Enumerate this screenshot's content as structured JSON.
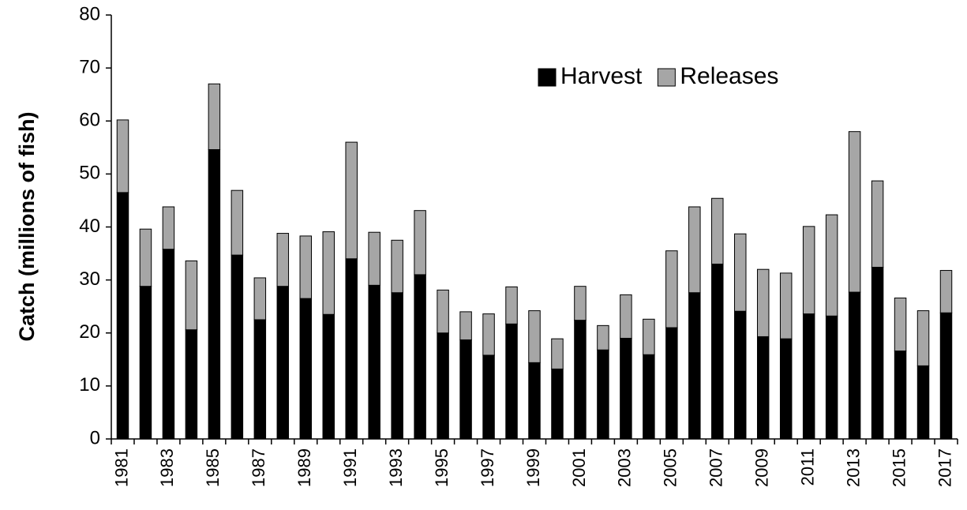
{
  "chart_data": {
    "type": "stacked-bar",
    "y_label": "Catch (millions of fish)",
    "categories": [
      "1981",
      null,
      "1983",
      null,
      "1985",
      null,
      "1987",
      null,
      "1989",
      null,
      "1991",
      null,
      "1993",
      null,
      "1995",
      null,
      "1997",
      null,
      "1999",
      null,
      "2001",
      null,
      "2003",
      null,
      "2005",
      null,
      "2007",
      null,
      "2009",
      null,
      "2011",
      null,
      "2013",
      null,
      "2015",
      null,
      "2017"
    ],
    "series": [
      {
        "name": "Harvest",
        "color": "#000000",
        "values": [
          46.5,
          28.8,
          35.8,
          20.6,
          54.6,
          34.7,
          22.5,
          28.8,
          26.5,
          23.5,
          34,
          29,
          27.6,
          31,
          20,
          18.7,
          15.8,
          21.7,
          14.4,
          13.2,
          22.4,
          16.8,
          19,
          15.9,
          21,
          27.6,
          33,
          24.1,
          19.3,
          18.9,
          23.6,
          23.2,
          27.7,
          32.4,
          16.6,
          13.8,
          23.8
        ]
      },
      {
        "name": "Releases",
        "color": "#a6a6a6",
        "values": [
          13.7,
          10.8,
          8,
          13,
          12.4,
          12.2,
          7.9,
          10,
          11.8,
          15.6,
          22,
          10,
          9.9,
          12.1,
          8.1,
          5.3,
          7.8,
          7,
          9.8,
          5.7,
          6.4,
          4.6,
          8.2,
          6.7,
          14.5,
          16.2,
          12.4,
          14.6,
          12.7,
          12.4,
          16.5,
          19.1,
          30.3,
          16.3,
          10,
          10.4,
          8
        ]
      }
    ],
    "ylim": [
      0,
      80
    ],
    "yticks": [
      0,
      10,
      20,
      30,
      40,
      50,
      60,
      70,
      80
    ]
  }
}
